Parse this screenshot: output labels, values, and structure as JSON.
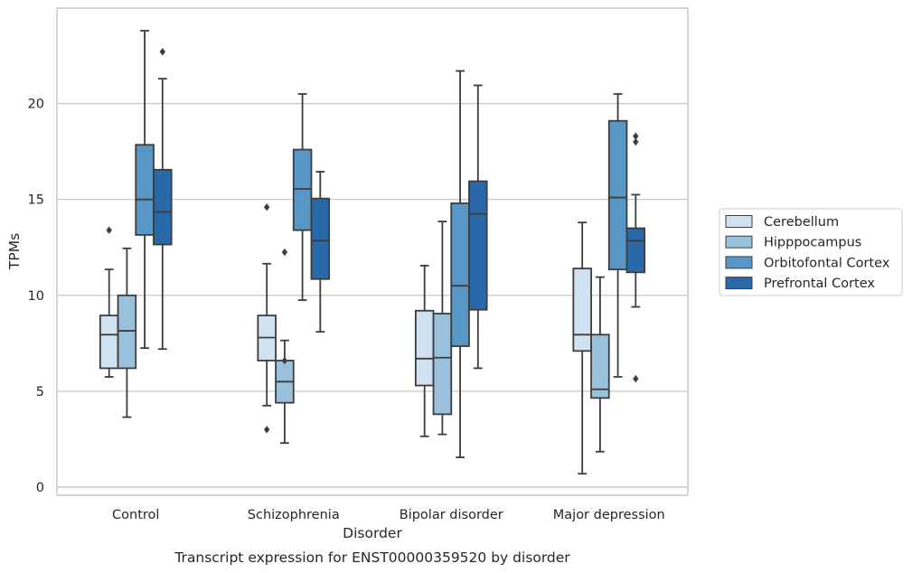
{
  "chart_data": {
    "type": "box",
    "caption": "Transcript expression for ENST00000359520 by disorder",
    "xlabel": "Disorder",
    "ylabel": "TPMs",
    "categories": [
      "Control",
      "Schizophrenia",
      "Bipolar disorder",
      "Major depression"
    ],
    "ylim": [
      -0.4,
      24.9
    ],
    "yticks": [
      0,
      5,
      10,
      15,
      20
    ],
    "grid": true,
    "legend_position": "right",
    "series": [
      {
        "name": "Cerebellum",
        "color": "#d0e1f1",
        "boxes": [
          {
            "whislo": 5.75,
            "q1": 6.2,
            "med": 7.95,
            "q3": 8.95,
            "whishi": 11.35,
            "fliers": [
              13.4
            ]
          },
          {
            "whislo": 4.25,
            "q1": 6.6,
            "med": 7.8,
            "q3": 8.95,
            "whishi": 11.65,
            "fliers": [
              14.6,
              3.0
            ]
          },
          {
            "whislo": 2.65,
            "q1": 5.3,
            "med": 6.7,
            "q3": 9.2,
            "whishi": 11.55,
            "fliers": []
          },
          {
            "whislo": 0.7,
            "q1": 7.1,
            "med": 7.95,
            "q3": 11.4,
            "whishi": 13.8,
            "fliers": []
          }
        ]
      },
      {
        "name": "Hipppocampus",
        "color": "#9ac1dc",
        "boxes": [
          {
            "whislo": 3.65,
            "q1": 6.2,
            "med": 8.15,
            "q3": 10.0,
            "whishi": 12.45,
            "fliers": []
          },
          {
            "whislo": 2.3,
            "q1": 4.4,
            "med": 5.5,
            "q3": 6.6,
            "whishi": 7.65,
            "fliers": [
              12.25,
              6.6
            ]
          },
          {
            "whislo": 2.75,
            "q1": 3.8,
            "med": 6.75,
            "q3": 9.05,
            "whishi": 13.85,
            "fliers": []
          },
          {
            "whislo": 1.85,
            "q1": 4.65,
            "med": 5.1,
            "q3": 7.95,
            "whishi": 10.95,
            "fliers": []
          }
        ]
      },
      {
        "name": "Orbitofontal Cortex",
        "color": "#5796c5",
        "boxes": [
          {
            "whislo": 7.25,
            "q1": 13.15,
            "med": 15.0,
            "q3": 17.85,
            "whishi": 23.8,
            "fliers": []
          },
          {
            "whislo": 9.75,
            "q1": 13.4,
            "med": 15.55,
            "q3": 17.6,
            "whishi": 20.5,
            "fliers": []
          },
          {
            "whislo": 1.55,
            "q1": 7.35,
            "med": 10.5,
            "q3": 14.8,
            "whishi": 21.7,
            "fliers": []
          },
          {
            "whislo": 5.75,
            "q1": 11.35,
            "med": 15.1,
            "q3": 19.1,
            "whishi": 20.5,
            "fliers": []
          }
        ]
      },
      {
        "name": "Prefrontal Cortex",
        "color": "#2a69a9",
        "boxes": [
          {
            "whislo": 7.2,
            "q1": 12.65,
            "med": 14.35,
            "q3": 16.55,
            "whishi": 21.3,
            "fliers": [
              22.7
            ]
          },
          {
            "whislo": 8.1,
            "q1": 10.85,
            "med": 12.85,
            "q3": 15.05,
            "whishi": 16.45,
            "fliers": []
          },
          {
            "whislo": 6.2,
            "q1": 9.25,
            "med": 14.25,
            "q3": 15.95,
            "whishi": 20.95,
            "fliers": []
          },
          {
            "whislo": 9.4,
            "q1": 11.2,
            "med": 12.85,
            "q3": 13.5,
            "whishi": 15.25,
            "fliers": [
              18.3,
              18.0,
              5.65
            ]
          }
        ]
      }
    ]
  }
}
